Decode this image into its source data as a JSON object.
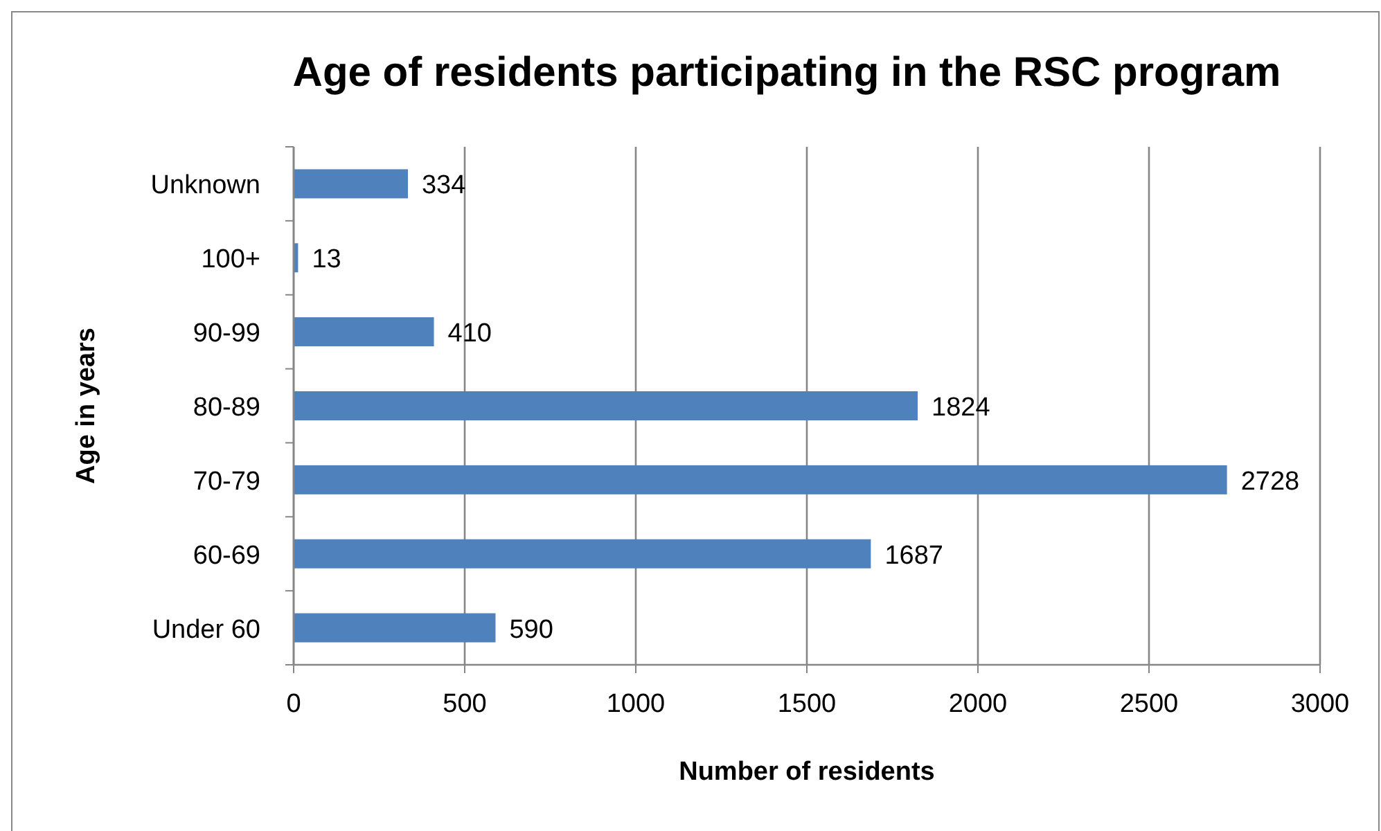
{
  "chart_data": {
    "type": "bar",
    "orientation": "horizontal",
    "title": "Age of residents participating in the RSC program",
    "xlabel": "Number of residents",
    "ylabel": "Age in years",
    "categories": [
      "Unknown",
      "100+",
      "90-99",
      "80-89",
      "70-79",
      "60-69",
      "Under 60"
    ],
    "values": [
      334,
      13,
      410,
      1824,
      2728,
      1687,
      590
    ],
    "color": "#4f81bd",
    "xlim": [
      0,
      3000
    ],
    "xticks": [
      0,
      500,
      1000,
      1500,
      2000,
      2500,
      3000
    ],
    "grid": "x",
    "data_labels": true
  }
}
